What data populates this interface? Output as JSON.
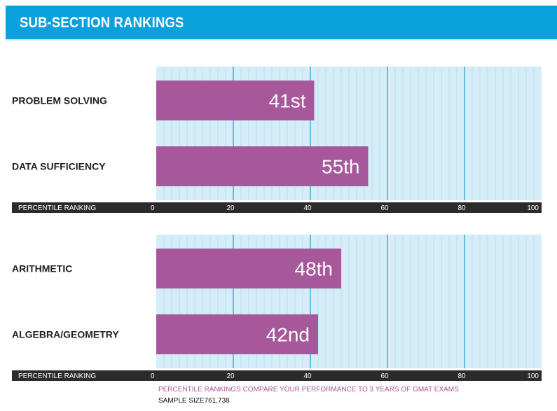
{
  "header": {
    "title": "SUB-SECTION RANKINGS"
  },
  "colors": {
    "header_bg": "#0aa0dc",
    "bar": "#a6589a",
    "grid_bg": "#d5edf8",
    "grid_minor": "#a9d9ef",
    "grid_major": "#1a9ecf",
    "axis_bar": "#2b2b2b"
  },
  "chart_data": [
    {
      "type": "bar",
      "orientation": "horizontal",
      "categories": [
        "PROBLEM SOLVING",
        "DATA SUFFICIENCY"
      ],
      "values": [
        41,
        55
      ],
      "labels": [
        "41st",
        "55th"
      ],
      "xlabel": "PERCENTILE RANKING",
      "xlim": [
        0,
        100
      ],
      "xticks": [
        0,
        20,
        40,
        60,
        80,
        100
      ],
      "grid": true
    },
    {
      "type": "bar",
      "orientation": "horizontal",
      "categories": [
        "ARITHMETIC",
        "ALGEBRA/GEOMETRY"
      ],
      "values": [
        48,
        42
      ],
      "labels": [
        "48th",
        "42nd"
      ],
      "xlabel": "PERCENTILE RANKING",
      "xlim": [
        0,
        100
      ],
      "xticks": [
        0,
        20,
        40,
        60,
        80,
        100
      ],
      "grid": true
    }
  ],
  "footer": {
    "note": "PERCENTILE RANKINGS COMPARE YOUR PERFORMANCE TO 3 YEARS OF GMAT EXAMS",
    "sample_size": "SAMPLE SIZE761,738"
  }
}
